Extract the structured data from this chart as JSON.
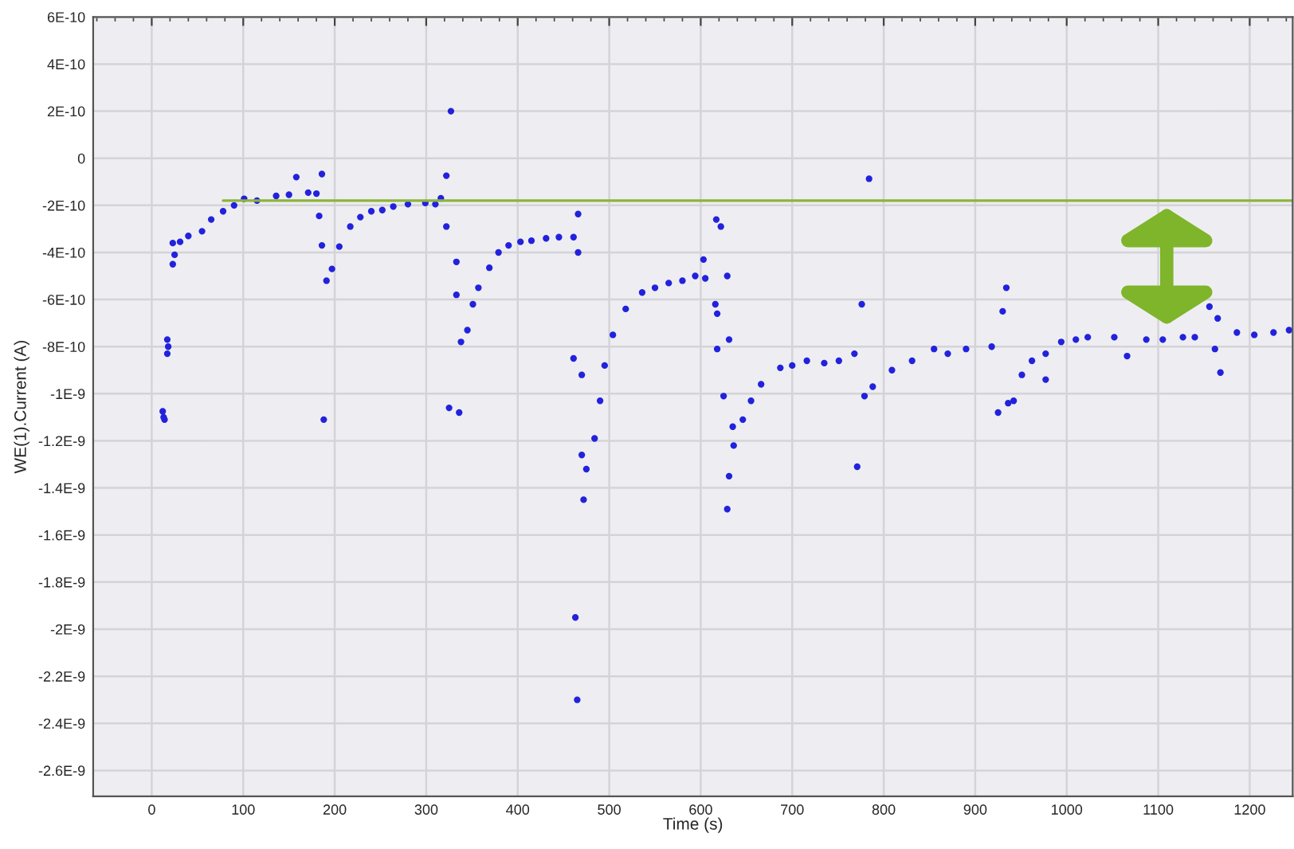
{
  "chart_data": {
    "type": "scatter",
    "xlabel": "Time (s)",
    "ylabel": "WE(1).Current (A)",
    "xlim": [
      -64,
      1247
    ],
    "ylim": [
      -2.71e-09,
      6e-10
    ],
    "xticks": [
      0,
      100,
      200,
      300,
      400,
      500,
      600,
      700,
      800,
      900,
      1000,
      1100,
      1200
    ],
    "yticks": [
      {
        "value": 6e-10,
        "label": "6E-10"
      },
      {
        "value": 4e-10,
        "label": "4E-10"
      },
      {
        "value": 2e-10,
        "label": "2E-10"
      },
      {
        "value": 0,
        "label": "0"
      },
      {
        "value": -2e-10,
        "label": "-2E-10"
      },
      {
        "value": -4e-10,
        "label": "-4E-10"
      },
      {
        "value": -6e-10,
        "label": "-6E-10"
      },
      {
        "value": -8e-10,
        "label": "-8E-10"
      },
      {
        "value": -1e-09,
        "label": "-1E-9"
      },
      {
        "value": -1.2e-09,
        "label": "-1.2E-9"
      },
      {
        "value": -1.4e-09,
        "label": "-1.4E-9"
      },
      {
        "value": -1.6e-09,
        "label": "-1.6E-9"
      },
      {
        "value": -1.8e-09,
        "label": "-1.8E-9"
      },
      {
        "value": -2e-09,
        "label": "-2E-9"
      },
      {
        "value": -2.2e-09,
        "label": "-2.2E-9"
      },
      {
        "value": -2.4e-09,
        "label": "-2.4E-9"
      },
      {
        "value": -2.6e-09,
        "label": "-2.6E-9"
      }
    ],
    "grid": true,
    "marker": "circle",
    "series": [
      {
        "color": "#2222dd",
        "x": [
          12,
          14,
          13,
          17,
          17,
          18,
          23,
          23,
          25,
          31,
          40,
          55,
          65,
          78,
          90,
          101,
          115,
          136,
          150,
          158,
          171,
          180,
          183,
          186,
          188,
          186,
          191,
          197,
          205,
          217,
          228,
          240,
          252,
          264,
          280,
          299,
          310,
          316,
          322,
          322,
          327,
          325,
          336,
          333,
          333,
          338,
          345,
          351,
          357,
          369,
          379,
          390,
          403,
          415,
          431,
          445,
          461,
          466,
          466,
          461,
          463,
          465,
          470,
          470,
          475,
          472,
          484,
          490,
          495,
          504,
          518,
          536,
          550,
          565,
          580,
          594,
          605,
          603,
          617,
          622,
          629,
          616,
          618,
          618,
          631,
          625,
          635,
          636,
          631,
          629,
          646,
          655,
          666,
          687,
          700,
          716,
          735,
          751,
          768,
          776,
          784,
          771,
          779,
          788,
          809,
          831,
          855,
          870,
          890,
          918,
          930,
          934,
          925,
          936,
          942,
          951,
          962,
          977,
          977,
          994,
          1010,
          1023,
          1052,
          1066,
          1087,
          1105,
          1127,
          1140,
          1156,
          1165,
          1168,
          1162,
          1186,
          1205,
          1226,
          1243
        ],
        "values": [
          -1.075e-09,
          -1.11e-09,
          -1.1e-09,
          -7.7e-10,
          -8.3e-10,
          -8e-10,
          -3.6e-10,
          -4.5e-10,
          -4.1e-10,
          -3.55e-10,
          -3.3e-10,
          -3.1e-10,
          -2.6e-10,
          -2.25e-10,
          -2e-10,
          -1.72e-10,
          -1.8e-10,
          -1.6e-10,
          -1.55e-10,
          -8e-11,
          -1.46e-10,
          -1.5e-10,
          -2.45e-10,
          -6.7e-11,
          -1.11e-09,
          -3.7e-10,
          -5.2e-10,
          -4.7e-10,
          -3.75e-10,
          -2.9e-10,
          -2.5e-10,
          -2.25e-10,
          -2.2e-10,
          -2.05e-10,
          -1.95e-10,
          -1.9e-10,
          -1.95e-10,
          -1.7e-10,
          -7.4e-11,
          -2.9e-10,
          2e-10,
          -1.06e-09,
          -1.08e-09,
          -4.4e-10,
          -5.8e-10,
          -7.8e-10,
          -7.3e-10,
          -6.2e-10,
          -5.5e-10,
          -4.65e-10,
          -4e-10,
          -3.7e-10,
          -3.55e-10,
          -3.5e-10,
          -3.4e-10,
          -3.35e-10,
          -3.35e-10,
          -2.37e-10,
          -4e-10,
          -8.5e-10,
          -1.95e-09,
          -2.3e-09,
          -9.2e-10,
          -1.26e-09,
          -1.32e-09,
          -1.45e-09,
          -1.19e-09,
          -1.03e-09,
          -8.8e-10,
          -7.5e-10,
          -6.4e-10,
          -5.7e-10,
          -5.5e-10,
          -5.3e-10,
          -5.2e-10,
          -5e-10,
          -5.1e-10,
          -4.3e-10,
          -2.6e-10,
          -2.9e-10,
          -5e-10,
          -6.2e-10,
          -6.6e-10,
          -8.1e-10,
          -7.7e-10,
          -1.01e-09,
          -1.14e-09,
          -1.22e-09,
          -1.35e-09,
          -1.49e-09,
          -1.11e-09,
          -1.03e-09,
          -9.6e-10,
          -8.9e-10,
          -8.8e-10,
          -8.6e-10,
          -8.7e-10,
          -8.6e-10,
          -8.3e-10,
          -6.2e-10,
          -8.7e-11,
          -1.31e-09,
          -1.01e-09,
          -9.7e-10,
          -9e-10,
          -8.6e-10,
          -8.1e-10,
          -8.3e-10,
          -8.1e-10,
          -8e-10,
          -6.5e-10,
          -5.5e-10,
          -1.08e-09,
          -1.04e-09,
          -1.03e-09,
          -9.2e-10,
          -8.6e-10,
          -8.3e-10,
          -9.4e-10,
          -7.8e-10,
          -7.7e-10,
          -7.6e-10,
          -7.6e-10,
          -8.4e-10,
          -7.7e-10,
          -7.7e-10,
          -7.6e-10,
          -7.6e-10,
          -6.3e-10,
          -6.8e-10,
          -9.1e-10,
          -8.1e-10,
          -7.4e-10,
          -7.5e-10,
          -7.4e-10,
          -7.3e-10
        ]
      },
      {
        "type": "line",
        "color": "#8cb43a",
        "marker": "none",
        "x": [
          78,
          1247
        ],
        "values": [
          -1.8e-10,
          -1.8e-10
        ]
      }
    ]
  }
}
